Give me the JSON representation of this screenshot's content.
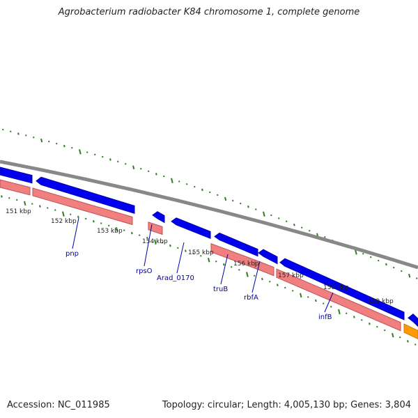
{
  "title": "Agrobacterium radiobacter K84 chromosome 1, complete genome",
  "footer": {
    "accession": "Accession: NC_011985",
    "summary": "Topology: circular; Length: 4,005,130 bp; Genes: 3,804"
  },
  "colors": {
    "backbone": "#888888",
    "gene_forward": "#0000ee",
    "gene_reverse": "#f08080",
    "rrna": "#ff9900",
    "gc_ticks": "#2e7d1f",
    "gene_label": "#0000aa"
  },
  "scale_labels": [
    "151 kbp",
    "152 kbp",
    "153 kbp",
    "154 kbp",
    "155 kbp",
    "156 kbp",
    "157 kbp",
    "158 kbp",
    "159 kbp"
  ],
  "gene_labels": [
    "pnp",
    "rpsO",
    "Arad_0170",
    "truB",
    "rbfA",
    "infB"
  ]
}
